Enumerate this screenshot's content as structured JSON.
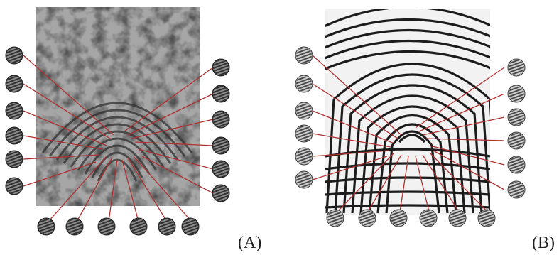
{
  "figure": {
    "panel_a": {
      "label": "(A)",
      "description_icon": "latent-fingerprint-image",
      "line_color": "#b03030"
    },
    "panel_b": {
      "label": "(B)",
      "description_icon": "rolled-fingerprint-image",
      "line_color": "#b03030"
    }
  }
}
